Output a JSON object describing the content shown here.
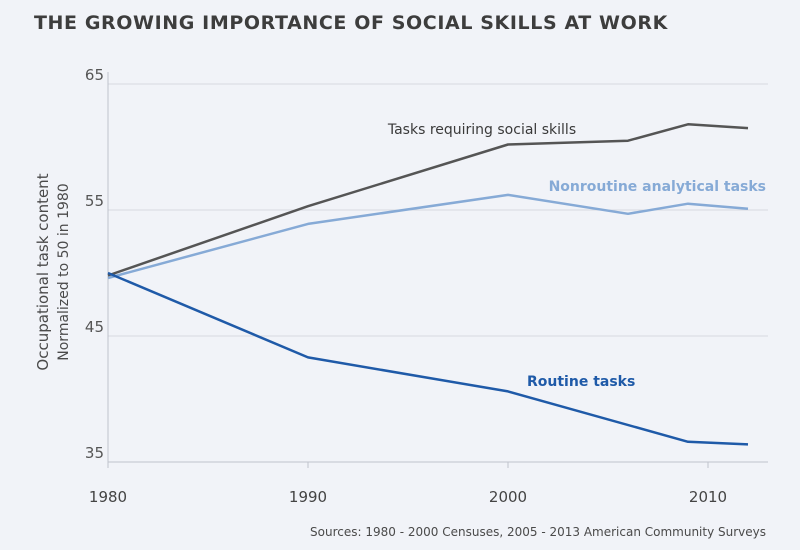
{
  "chart_data": {
    "type": "line",
    "title": "THE GROWING IMPORTANCE OF SOCIAL SKILLS AT WORK",
    "ylabel": "Occupational task content",
    "ylabel_sub": "Normalized to 50 in 1980",
    "xlabel": "",
    "xlim": [
      1980,
      2013
    ],
    "ylim": [
      35,
      65
    ],
    "x_ticks": [
      1980,
      1990,
      2000,
      2010
    ],
    "y_ticks": [
      35,
      45,
      55,
      65
    ],
    "grid": "horizontal",
    "series": [
      {
        "name": "Tasks requiring social skills",
        "color": "#555555",
        "x": [
          1980,
          1990,
          2000,
          2006,
          2009,
          2012
        ],
        "y": [
          49.8,
          55.3,
          60.2,
          60.5,
          61.8,
          61.5
        ]
      },
      {
        "name": "Nonroutine analytical tasks",
        "color": "#86aad6",
        "x": [
          1980,
          1990,
          2000,
          2006,
          2009,
          2012
        ],
        "y": [
          49.6,
          53.9,
          56.2,
          54.7,
          55.5,
          55.1
        ]
      },
      {
        "name": "Routine tasks",
        "color": "#1f5aa8",
        "x": [
          1980,
          1990,
          2000,
          2009,
          2012
        ],
        "y": [
          50.0,
          43.3,
          40.6,
          36.6,
          36.4
        ]
      }
    ],
    "source": "Sources: 1980 - 2000 Censuses, 2005 - 2013 American Community Surveys"
  }
}
